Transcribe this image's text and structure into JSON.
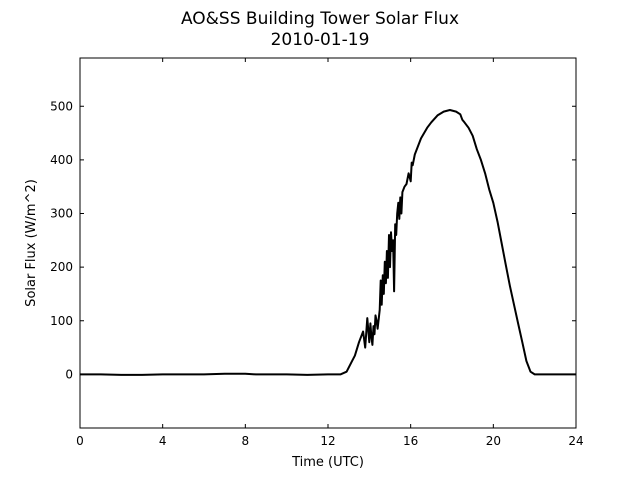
{
  "chart_data": {
    "type": "line",
    "title": "AO&SS Building Tower Solar Flux",
    "subtitle": "2010-01-19",
    "xlabel": "Time (UTC)",
    "ylabel": "Solar Flux (W/m^2)",
    "xlim": [
      0,
      24
    ],
    "ylim": [
      -100,
      590
    ],
    "xticks": [
      0,
      4,
      8,
      12,
      16,
      20,
      24
    ],
    "yticks": [
      0,
      100,
      200,
      300,
      400,
      500
    ],
    "grid": false,
    "legend": "none",
    "line_color": "#000000",
    "series": [
      {
        "x": [
          0,
          1,
          2,
          3,
          4,
          5,
          6,
          7,
          8,
          8.5,
          9,
          10,
          11,
          12,
          12.6,
          12.9,
          13.1,
          13.3,
          13.5,
          13.7,
          13.8,
          13.9,
          14.0,
          14.05,
          14.1,
          14.15,
          14.2,
          14.25,
          14.3,
          14.35,
          14.4,
          14.5,
          14.55,
          14.6,
          14.65,
          14.7,
          14.75,
          14.8,
          14.85,
          14.9,
          14.95,
          15.0,
          15.05,
          15.1,
          15.15,
          15.2,
          15.25,
          15.3,
          15.35,
          15.4,
          15.45,
          15.5,
          15.55,
          15.6,
          15.7,
          15.8,
          15.9,
          16.0,
          16.05,
          16.1,
          16.2,
          16.5,
          16.8,
          17.0,
          17.3,
          17.6,
          17.9,
          18.2,
          18.4,
          18.5,
          18.6,
          18.8,
          19.0,
          19.2,
          19.4,
          19.6,
          19.8,
          20.0,
          20.2,
          20.4,
          20.6,
          20.8,
          21.0,
          21.2,
          21.4,
          21.6,
          21.8,
          22.0,
          22.2,
          22.4,
          22.6,
          22.8,
          23.0,
          23.5,
          24.0
        ],
        "values": [
          0,
          0,
          -1,
          -1,
          0,
          0,
          0,
          1,
          1,
          0,
          0,
          0,
          -1,
          0,
          0,
          5,
          20,
          35,
          60,
          80,
          50,
          105,
          60,
          95,
          70,
          55,
          90,
          75,
          110,
          100,
          85,
          120,
          175,
          130,
          185,
          150,
          210,
          170,
          230,
          180,
          260,
          200,
          265,
          230,
          250,
          155,
          280,
          260,
          300,
          320,
          290,
          330,
          300,
          340,
          350,
          355,
          375,
          360,
          395,
          390,
          410,
          440,
          460,
          470,
          483,
          490,
          493,
          490,
          485,
          475,
          470,
          460,
          445,
          420,
          400,
          375,
          345,
          320,
          285,
          245,
          205,
          165,
          130,
          95,
          60,
          25,
          5,
          0,
          0,
          0,
          0,
          0,
          0,
          0,
          0
        ]
      }
    ]
  }
}
